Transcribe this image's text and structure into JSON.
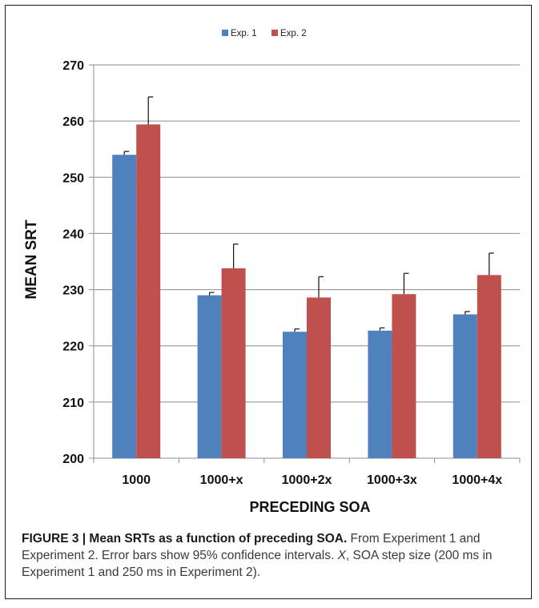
{
  "chart_data": {
    "type": "bar",
    "categories": [
      "1000",
      "1000+x",
      "1000+2x",
      "1000+3x",
      "1000+4x"
    ],
    "series": [
      {
        "name": "Exp. 1",
        "color": "#4f81bd",
        "values": [
          254.0,
          229.0,
          222.5,
          222.7,
          225.6
        ],
        "error": [
          0.6,
          0.5,
          0.5,
          0.5,
          0.5
        ]
      },
      {
        "name": "Exp. 2",
        "color": "#c0504d",
        "values": [
          259.4,
          233.8,
          228.6,
          229.2,
          232.6
        ],
        "error": [
          4.9,
          4.3,
          3.7,
          3.7,
          3.9
        ]
      }
    ],
    "xlabel": "PRECEDING SOA",
    "ylabel": "MEAN SRT",
    "ylim": [
      200,
      270
    ],
    "yticks": [
      200,
      210,
      220,
      230,
      240,
      250,
      260,
      270
    ],
    "grid": true,
    "legend_position": "top-center"
  },
  "caption": {
    "lead": "FIGURE 3 | Mean SRTs as a function of preceding SOA.",
    "text_a": " From Experiment 1 and Experiment 2. Error bars show 95% confidence intervals. ",
    "x_symbol": "X",
    "text_b": ", SOA step size (200 ms in Experiment 1 and 250 ms in Experiment 2)."
  }
}
